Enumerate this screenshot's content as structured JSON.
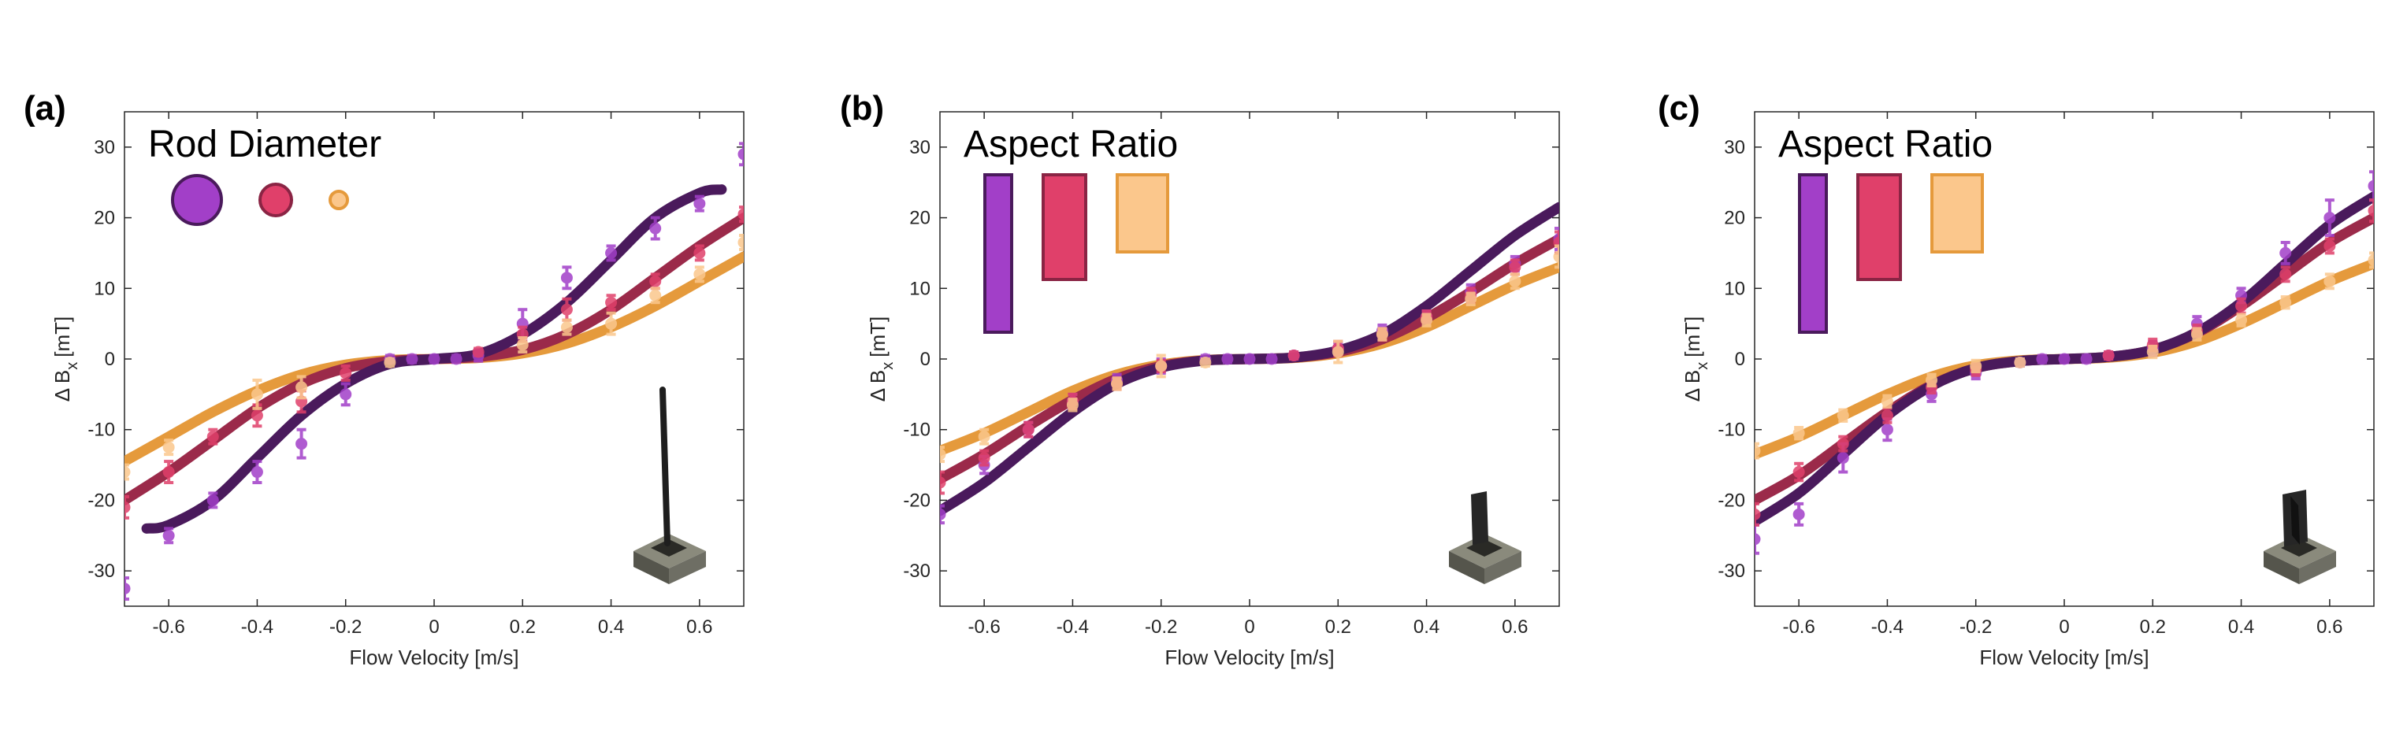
{
  "chart_data": [
    {
      "type": "line",
      "panel_label": "(a)",
      "annotation": "Rod Diameter",
      "legend_shape": "circle",
      "xlabel": "Flow Velocity [m/s]",
      "ylabel_main": "Δ B",
      "ylabel_sub": "x",
      "ylabel_unit": "[mT]",
      "xlim": [
        -0.7,
        0.7
      ],
      "ylim": [
        -35,
        35
      ],
      "xticks": [
        -0.6,
        -0.4,
        -0.2,
        0,
        0.2,
        0.4,
        0.6
      ],
      "xtick_labels": [
        "-0.6",
        "-0.4",
        "-0.2",
        "0",
        "0.2",
        "0.4",
        "0.6"
      ],
      "yticks": [
        -30,
        -20,
        -10,
        0,
        10,
        20,
        30
      ],
      "ytick_labels": [
        "-30",
        "-20",
        "-10",
        "0",
        "10",
        "20",
        "30"
      ],
      "series": [
        {
          "name": "large",
          "line_color": "#4a1a5c",
          "marker_color": "#a23fc8",
          "marker_edge": "#4a1a5c",
          "legend_size": 3,
          "fit_x": [
            -0.65,
            -0.6,
            -0.5,
            -0.4,
            -0.3,
            -0.2,
            -0.1,
            0,
            0.1,
            0.2,
            0.3,
            0.4,
            0.5,
            0.6,
            0.65
          ],
          "fit_y": [
            -24,
            -23.5,
            -20,
            -14,
            -8,
            -3.5,
            -0.7,
            0,
            0.7,
            3.5,
            8,
            14,
            20,
            23.5,
            24
          ],
          "x": [
            -0.7,
            -0.6,
            -0.5,
            -0.4,
            -0.3,
            -0.2,
            -0.1,
            -0.05,
            0,
            0.05,
            0.1,
            0.2,
            0.3,
            0.4,
            0.5,
            0.6,
            0.7
          ],
          "y": [
            -32.5,
            -25,
            -20,
            -16,
            -12,
            -5,
            0,
            0,
            0,
            0,
            0.5,
            5,
            11.5,
            15,
            18.5,
            22,
            29
          ],
          "err": [
            1.5,
            1,
            1,
            1.5,
            2,
            1.5,
            0.5,
            0.5,
            0.5,
            0.5,
            0.8,
            2,
            1.5,
            1,
            1.5,
            1,
            1.5
          ]
        },
        {
          "name": "medium",
          "line_color": "#9b2a4a",
          "marker_color": "#e0406a",
          "marker_edge": "#8a2444",
          "legend_size": 2,
          "fit_x": [
            -0.7,
            -0.6,
            -0.5,
            -0.4,
            -0.3,
            -0.2,
            -0.1,
            0,
            0.1,
            0.2,
            0.3,
            0.4,
            0.5,
            0.6,
            0.7
          ],
          "fit_y": [
            -20,
            -16,
            -11.5,
            -7,
            -3.5,
            -1.3,
            -0.3,
            0,
            0.3,
            1.3,
            3.5,
            7,
            11.5,
            16,
            20
          ],
          "x": [
            -0.7,
            -0.6,
            -0.5,
            -0.4,
            -0.3,
            -0.2,
            0.1,
            0.2,
            0.3,
            0.4,
            0.5,
            0.6,
            0.7
          ],
          "y": [
            -21,
            -16,
            -11,
            -8,
            -6,
            -2,
            1,
            3.5,
            7,
            8,
            11,
            15,
            20.5
          ],
          "err": [
            1.5,
            1.5,
            1,
            1.5,
            1.5,
            1,
            0.5,
            1,
            1.5,
            1,
            1,
            1,
            1
          ]
        },
        {
          "name": "small",
          "line_color": "#e59a3c",
          "marker_color": "#fbc78c",
          "marker_edge": "#e59a3c",
          "legend_size": 1,
          "fit_x": [
            -0.7,
            -0.6,
            -0.5,
            -0.4,
            -0.3,
            -0.2,
            -0.1,
            0,
            0.1,
            0.2,
            0.3,
            0.4,
            0.5,
            0.6,
            0.7
          ],
          "fit_y": [
            -14.5,
            -11,
            -7.5,
            -4.5,
            -2.2,
            -0.8,
            -0.15,
            0,
            0.15,
            0.8,
            2.2,
            4.5,
            7.5,
            11,
            14.5
          ],
          "x": [
            -0.7,
            -0.6,
            -0.4,
            -0.3,
            -0.1,
            0.2,
            0.3,
            0.4,
            0.5,
            0.6,
            0.7
          ],
          "y": [
            -16,
            -12.5,
            -5,
            -4,
            -0.5,
            2,
            4.5,
            5,
            9,
            12,
            16.5
          ],
          "err": [
            1,
            1,
            2,
            1.5,
            0.5,
            1,
            1,
            1.5,
            1,
            1,
            1
          ]
        }
      ]
    },
    {
      "type": "line",
      "panel_label": "(b)",
      "annotation": "Aspect Ratio",
      "legend_shape": "rect",
      "xlabel": "Flow Velocity [m/s]",
      "ylabel_main": "Δ B",
      "ylabel_sub": "x",
      "ylabel_unit": "[mT]",
      "xlim": [
        -0.7,
        0.7
      ],
      "ylim": [
        -35,
        35
      ],
      "xticks": [
        -0.6,
        -0.4,
        -0.2,
        0,
        0.2,
        0.4,
        0.6
      ],
      "xtick_labels": [
        "-0.6",
        "-0.4",
        "-0.2",
        "0",
        "0.2",
        "0.4",
        "0.6"
      ],
      "yticks": [
        -30,
        -20,
        -10,
        0,
        10,
        20,
        30
      ],
      "ytick_labels": [
        "-30",
        "-20",
        "-10",
        "0",
        "10",
        "20",
        "30"
      ],
      "series": [
        {
          "name": "tall",
          "line_color": "#4a1a5c",
          "marker_color": "#a23fc8",
          "marker_edge": "#4a1a5c",
          "legend_size": 3,
          "fit_x": [
            -0.7,
            -0.6,
            -0.5,
            -0.4,
            -0.3,
            -0.2,
            -0.1,
            0,
            0.1,
            0.2,
            0.3,
            0.4,
            0.5,
            0.6,
            0.7
          ],
          "fit_y": [
            -21.5,
            -17.5,
            -12.5,
            -7.5,
            -3.5,
            -1.2,
            -0.2,
            0,
            0.2,
            1.2,
            3.5,
            7.5,
            12.5,
            17.5,
            21.5
          ],
          "x": [
            -0.7,
            -0.6,
            -0.5,
            -0.4,
            -0.3,
            -0.2,
            -0.1,
            -0.05,
            0,
            0.05,
            0.1,
            0.2,
            0.3,
            0.4,
            0.5,
            0.6,
            0.7
          ],
          "y": [
            -22,
            -15,
            -10,
            -6,
            -3,
            -1,
            0,
            0,
            0,
            0,
            0.5,
            1.5,
            4,
            6,
            9.5,
            13.5,
            17
          ],
          "err": [
            1.2,
            1.2,
            1,
            1,
            0.8,
            1,
            0.5,
            0.5,
            0.5,
            0.5,
            0.5,
            0.8,
            0.8,
            0.8,
            1,
            1,
            1.5
          ]
        },
        {
          "name": "medium",
          "line_color": "#9b2a4a",
          "marker_color": "#e0406a",
          "marker_edge": "#8a2444",
          "legend_size": 2,
          "fit_x": [
            -0.7,
            -0.6,
            -0.5,
            -0.4,
            -0.3,
            -0.2,
            -0.1,
            0,
            0.1,
            0.2,
            0.3,
            0.4,
            0.5,
            0.6,
            0.7
          ],
          "fit_y": [
            -17,
            -13.5,
            -9.5,
            -5.8,
            -2.8,
            -1,
            -0.2,
            0,
            0.2,
            1,
            2.8,
            5.8,
            9.5,
            13.5,
            17
          ],
          "x": [
            -0.7,
            -0.6,
            -0.5,
            -0.4,
            -0.3,
            -0.2,
            0.1,
            0.2,
            0.3,
            0.4,
            0.5,
            0.6,
            0.7
          ],
          "y": [
            -17.5,
            -14,
            -10,
            -6,
            -3.5,
            -1,
            0.5,
            1.5,
            3.5,
            6,
            9,
            13,
            16.5
          ],
          "err": [
            1.5,
            1,
            1,
            1,
            0.8,
            0.8,
            0.5,
            1,
            0.8,
            0.8,
            1,
            1,
            1.5
          ]
        },
        {
          "name": "wide",
          "line_color": "#e59a3c",
          "marker_color": "#fbc78c",
          "marker_edge": "#e59a3c",
          "legend_size": 1,
          "fit_x": [
            -0.7,
            -0.6,
            -0.5,
            -0.4,
            -0.3,
            -0.2,
            -0.1,
            0,
            0.1,
            0.2,
            0.3,
            0.4,
            0.5,
            0.6,
            0.7
          ],
          "fit_y": [
            -13,
            -10.5,
            -7.5,
            -4.5,
            -2.2,
            -0.8,
            -0.15,
            0,
            0.15,
            0.8,
            2.2,
            4.5,
            7.5,
            10.5,
            13
          ],
          "x": [
            -0.7,
            -0.6,
            -0.4,
            -0.3,
            -0.2,
            -0.1,
            0.2,
            0.3,
            0.4,
            0.5,
            0.6,
            0.7
          ],
          "y": [
            -13.5,
            -11,
            -6.5,
            -3.5,
            -1,
            -0.5,
            1,
            3.5,
            5.5,
            8.5,
            11,
            14.5
          ],
          "err": [
            1,
            1,
            0.8,
            0.8,
            1.5,
            0.5,
            1.5,
            0.8,
            0.8,
            0.8,
            1,
            1.5
          ]
        }
      ]
    },
    {
      "type": "line",
      "panel_label": "(c)",
      "annotation": "Aspect Ratio",
      "legend_shape": "rect",
      "xlabel": "Flow Velocity [m/s]",
      "ylabel_main": "Δ B",
      "ylabel_sub": "x",
      "ylabel_unit": "[mT]",
      "xlim": [
        -0.7,
        0.7
      ],
      "ylim": [
        -35,
        35
      ],
      "xticks": [
        -0.6,
        -0.4,
        -0.2,
        0,
        0.2,
        0.4,
        0.6
      ],
      "xtick_labels": [
        "-0.6",
        "-0.4",
        "-0.2",
        "0",
        "0.2",
        "0.4",
        "0.6"
      ],
      "yticks": [
        -30,
        -20,
        -10,
        0,
        10,
        20,
        30
      ],
      "ytick_labels": [
        "-30",
        "-20",
        "-10",
        "0",
        "10",
        "20",
        "30"
      ],
      "series": [
        {
          "name": "tall",
          "line_color": "#4a1a5c",
          "marker_color": "#a23fc8",
          "marker_edge": "#4a1a5c",
          "legend_size": 3,
          "fit_x": [
            -0.7,
            -0.6,
            -0.5,
            -0.4,
            -0.3,
            -0.2,
            -0.1,
            0,
            0.1,
            0.2,
            0.3,
            0.4,
            0.5,
            0.6,
            0.7
          ],
          "fit_y": [
            -23,
            -19,
            -13.5,
            -8,
            -3.8,
            -1.3,
            -0.3,
            0,
            0.3,
            1.3,
            3.8,
            8,
            13.5,
            19,
            23
          ],
          "x": [
            -0.7,
            -0.6,
            -0.5,
            -0.4,
            -0.3,
            -0.2,
            -0.1,
            -0.05,
            0,
            0.05,
            0.1,
            0.2,
            0.3,
            0.4,
            0.5,
            0.6,
            0.7
          ],
          "y": [
            -25.5,
            -22,
            -14,
            -10,
            -5,
            -2,
            -0.5,
            0,
            0,
            0,
            0.5,
            1.5,
            5,
            9,
            15,
            20,
            24.5
          ],
          "err": [
            2,
            1.5,
            2,
            1.5,
            1,
            0.8,
            0.5,
            0.5,
            0.5,
            0.5,
            0.5,
            1,
            1,
            1,
            1.5,
            2.5,
            2
          ]
        },
        {
          "name": "medium",
          "line_color": "#9b2a4a",
          "marker_color": "#e0406a",
          "marker_edge": "#8a2444",
          "legend_size": 2,
          "fit_x": [
            -0.7,
            -0.6,
            -0.5,
            -0.4,
            -0.3,
            -0.2,
            -0.1,
            0,
            0.1,
            0.2,
            0.3,
            0.4,
            0.5,
            0.6,
            0.7
          ],
          "fit_y": [
            -20,
            -16.5,
            -12,
            -7.5,
            -3.7,
            -1.3,
            -0.3,
            0,
            0.3,
            1.3,
            3.7,
            7.5,
            12,
            16.5,
            20
          ],
          "x": [
            -0.7,
            -0.6,
            -0.5,
            -0.4,
            -0.3,
            -0.2,
            0.1,
            0.2,
            0.3,
            0.4,
            0.5,
            0.6,
            0.7
          ],
          "y": [
            -22,
            -16,
            -12,
            -8,
            -4,
            -1.5,
            0.5,
            2,
            4,
            7.5,
            12,
            16,
            21
          ],
          "err": [
            1.5,
            1.2,
            1,
            1,
            0.8,
            0.8,
            0.5,
            0.8,
            0.8,
            1,
            1,
            1,
            1.5
          ]
        },
        {
          "name": "wide",
          "line_color": "#e59a3c",
          "marker_color": "#fbc78c",
          "marker_edge": "#e59a3c",
          "legend_size": 1,
          "fit_x": [
            -0.7,
            -0.6,
            -0.5,
            -0.4,
            -0.3,
            -0.2,
            -0.1,
            0,
            0.1,
            0.2,
            0.3,
            0.4,
            0.5,
            0.6,
            0.7
          ],
          "fit_y": [
            -13.5,
            -11,
            -8,
            -5,
            -2.5,
            -0.9,
            -0.2,
            0,
            0.2,
            0.9,
            2.5,
            5,
            8,
            11,
            13.5
          ],
          "x": [
            -0.7,
            -0.6,
            -0.5,
            -0.4,
            -0.3,
            -0.2,
            -0.1,
            0.2,
            0.3,
            0.4,
            0.5,
            0.6,
            0.7
          ],
          "y": [
            -13,
            -10.5,
            -8,
            -6,
            -3,
            -1,
            -0.5,
            1,
            3.5,
            5.5,
            8,
            11,
            14
          ],
          "err": [
            1,
            0.8,
            0.8,
            0.8,
            0.8,
            0.8,
            0.5,
            0.8,
            0.8,
            0.8,
            0.8,
            1,
            1
          ]
        }
      ]
    }
  ]
}
